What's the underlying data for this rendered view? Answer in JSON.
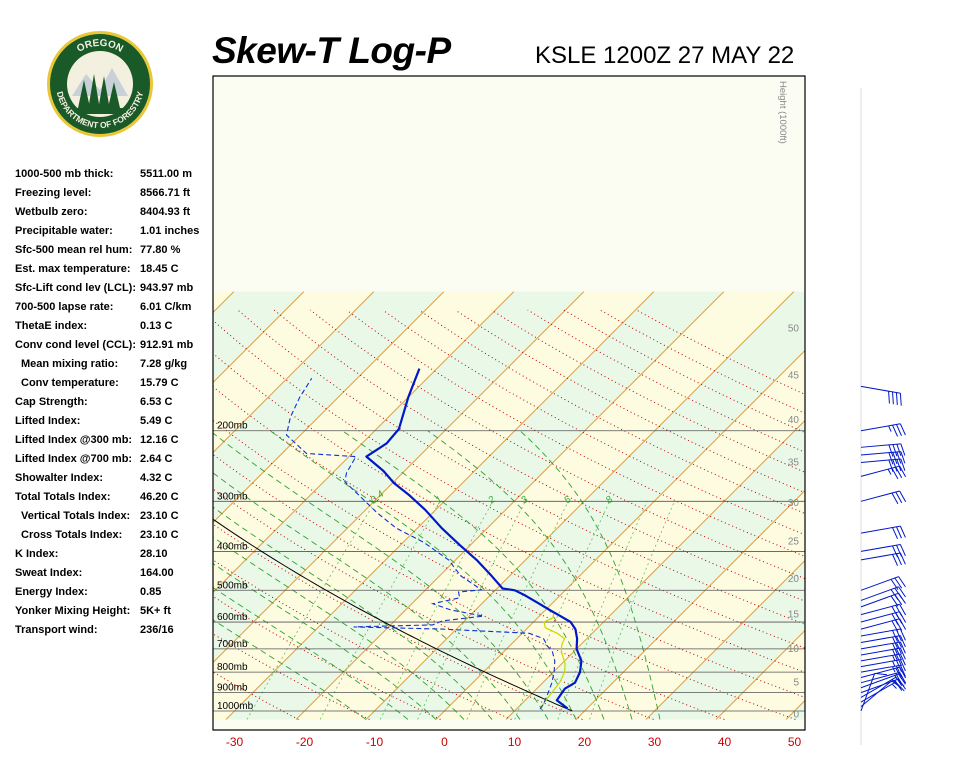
{
  "header": {
    "title": "Skew-T Log-P",
    "station_time": "KSLE 1200Z 27 MAY 22"
  },
  "logo": {
    "top_text": "OREGON",
    "bottom_text": "DEPARTMENT OF FORESTRY"
  },
  "stats": [
    {
      "label": "1000-500 mb thick:",
      "value": "5511.00 m"
    },
    {
      "label": "Freezing level:",
      "value": "8566.71 ft"
    },
    {
      "label": "Wetbulb zero:",
      "value": "8404.93 ft"
    },
    {
      "label": "Precipitable water:",
      "value": "1.01 inches"
    },
    {
      "label": "Sfc-500 mean rel hum:",
      "value": "77.80 %"
    },
    {
      "label": "Est. max temperature:",
      "value": "18.45 C"
    },
    {
      "label": "Sfc-Lift cond lev (LCL):",
      "value": "943.97 mb"
    },
    {
      "label": "700-500 lapse rate:",
      "value": "6.01 C/km"
    },
    {
      "label": "ThetaE index:",
      "value": "0.13 C"
    },
    {
      "label": "Conv cond level (CCL):",
      "value": "912.91 mb"
    },
    {
      "label": "Mean mixing ratio:",
      "value": "7.28 g/kg",
      "indent": true
    },
    {
      "label": "Conv temperature:",
      "value": "15.79 C",
      "indent": true
    },
    {
      "label": "Cap Strength:",
      "value": "6.53 C"
    },
    {
      "label": "Lifted Index:",
      "value": "5.49 C"
    },
    {
      "label": "Lifted Index @300 mb:",
      "value": "12.16 C"
    },
    {
      "label": "Lifted Index @700 mb:",
      "value": "2.64 C"
    },
    {
      "label": "Showalter Index:",
      "value": "4.32 C"
    },
    {
      "label": "Total Totals Index:",
      "value": "46.20 C"
    },
    {
      "label": "Vertical Totals Index:",
      "value": "23.10 C",
      "indent": true
    },
    {
      "label": "Cross Totals Index:",
      "value": "23.10 C",
      "indent": true
    },
    {
      "label": "K Index:",
      "value": "28.10"
    },
    {
      "label": "Sweat Index:",
      "value": "164.00"
    },
    {
      "label": "Energy Index:",
      "value": "0.85"
    },
    {
      "label": "Yonker Mixing Height:",
      "value": "5K+ ft"
    },
    {
      "label": "Transport wind:",
      "value": "236/16"
    }
  ],
  "chart_data": {
    "type": "line",
    "y_scale": "log-pressure",
    "x_ticks": [
      -30,
      -20,
      -10,
      0,
      10,
      20,
      30,
      40,
      50
    ],
    "x_tick_color": "#cc0000",
    "pressure_levels": [
      {
        "p": 200,
        "label": "200mb"
      },
      {
        "p": 300,
        "label": "300mb"
      },
      {
        "p": 400,
        "label": "400mb"
      },
      {
        "p": 500,
        "label": "500mb"
      },
      {
        "p": 600,
        "label": "600mb"
      },
      {
        "p": 700,
        "label": "700mb"
      },
      {
        "p": 800,
        "label": "800mb"
      },
      {
        "p": 900,
        "label": "900mb"
      },
      {
        "p": 1000,
        "label": "1000mb"
      }
    ],
    "height_axis": {
      "label": "Height (1000ft)",
      "ticks": [
        0,
        5,
        10,
        15,
        20,
        25,
        30,
        35,
        40,
        45,
        50
      ]
    },
    "mixing_ratio_labels": [
      "0.4",
      "1",
      "2",
      "3",
      "5",
      "8"
    ],
    "colors": {
      "temperature": "#0018c8",
      "dewpoint": "#1030d8",
      "parcel": "#000000",
      "wetbulb": "#c8d800",
      "isotherm": "#e0a040",
      "dry_adiabat": "#c00000",
      "moist_adiabat": "#30a030",
      "mixing_ratio": "#60c060",
      "wind_barb": "#0018c8"
    },
    "series": [
      {
        "key": "temperature",
        "points": [
          {
            "p": 985,
            "t": 17.2
          },
          {
            "p": 940,
            "t": 14.5
          },
          {
            "p": 880,
            "t": 14.0
          },
          {
            "p": 850,
            "t": 14.6
          },
          {
            "p": 800,
            "t": 13.8
          },
          {
            "p": 750,
            "t": 12.4
          },
          {
            "p": 700,
            "t": 10.0
          },
          {
            "p": 660,
            "t": 8.6
          },
          {
            "p": 625,
            "t": 7.0
          },
          {
            "p": 600,
            "t": 5.3
          },
          {
            "p": 580,
            "t": 3.0
          },
          {
            "p": 560,
            "t": 0.6
          },
          {
            "p": 540,
            "t": -1.8
          },
          {
            "p": 515,
            "t": -5.0
          },
          {
            "p": 500,
            "t": -7.2
          },
          {
            "p": 495,
            "t": -9.2
          },
          {
            "p": 460,
            "t": -12.6
          },
          {
            "p": 420,
            "t": -17.0
          },
          {
            "p": 385,
            "t": -21.6
          },
          {
            "p": 350,
            "t": -26.5
          },
          {
            "p": 315,
            "t": -31.5
          },
          {
            "p": 290,
            "t": -35.8
          },
          {
            "p": 270,
            "t": -39.8
          },
          {
            "p": 252,
            "t": -43.0
          },
          {
            "p": 232,
            "t": -47.5
          },
          {
            "p": 215,
            "t": -46.5
          },
          {
            "p": 198,
            "t": -46.8
          },
          {
            "p": 165,
            "t": -50.0
          },
          {
            "p": 140,
            "t": -52.5
          }
        ]
      },
      {
        "key": "dewpoint",
        "points": [
          {
            "p": 990,
            "t": 13.4
          },
          {
            "p": 950,
            "t": 13.0
          },
          {
            "p": 900,
            "t": 12.2
          },
          {
            "p": 850,
            "t": 11.3
          },
          {
            "p": 800,
            "t": 10.1
          },
          {
            "p": 750,
            "t": 8.6
          },
          {
            "p": 708,
            "t": 6.8
          },
          {
            "p": 690,
            "t": 5.5
          },
          {
            "p": 672,
            "t": 4.5
          },
          {
            "p": 660,
            "t": 3.8
          },
          {
            "p": 640,
            "t": 1.0
          },
          {
            "p": 625,
            "t": -12.0
          },
          {
            "p": 617,
            "t": -25.0
          },
          {
            "p": 610,
            "t": -14.0
          },
          {
            "p": 596,
            "t": -13.2
          },
          {
            "p": 580,
            "t": -8.0
          },
          {
            "p": 560,
            "t": -13.5
          },
          {
            "p": 540,
            "t": -17.0
          },
          {
            "p": 522,
            "t": -14.0
          },
          {
            "p": 505,
            "t": -15.0
          },
          {
            "p": 499,
            "t": -12.0
          },
          {
            "p": 460,
            "t": -17.0
          },
          {
            "p": 420,
            "t": -21.0
          },
          {
            "p": 380,
            "t": -27.0
          },
          {
            "p": 350,
            "t": -33.0
          },
          {
            "p": 320,
            "t": -38.0
          },
          {
            "p": 290,
            "t": -43.0
          },
          {
            "p": 268,
            "t": -47.0
          },
          {
            "p": 255,
            "t": -48.0
          },
          {
            "p": 232,
            "t": -49.0
          },
          {
            "p": 228,
            "t": -56.5
          },
          {
            "p": 205,
            "t": -62.0
          },
          {
            "p": 185,
            "t": -64.0
          },
          {
            "p": 165,
            "t": -65.5
          },
          {
            "p": 148,
            "t": -66.5
          }
        ]
      }
    ],
    "wind_barbs": [
      {
        "p": 1000,
        "dir": 200,
        "spd": 10
      },
      {
        "p": 975,
        "dir": 230,
        "spd": 10
      },
      {
        "p": 950,
        "dir": 240,
        "spd": 15
      },
      {
        "p": 925,
        "dir": 240,
        "spd": 15
      },
      {
        "p": 900,
        "dir": 250,
        "spd": 20
      },
      {
        "p": 875,
        "dir": 250,
        "spd": 20
      },
      {
        "p": 850,
        "dir": 255,
        "spd": 20
      },
      {
        "p": 825,
        "dir": 255,
        "spd": 20
      },
      {
        "p": 800,
        "dir": 260,
        "spd": 25
      },
      {
        "p": 775,
        "dir": 260,
        "spd": 25
      },
      {
        "p": 750,
        "dir": 260,
        "spd": 25
      },
      {
        "p": 725,
        "dir": 260,
        "spd": 30
      },
      {
        "p": 700,
        "dir": 260,
        "spd": 30
      },
      {
        "p": 675,
        "dir": 260,
        "spd": 30
      },
      {
        "p": 650,
        "dir": 260,
        "spd": 30
      },
      {
        "p": 625,
        "dir": 255,
        "spd": 30
      },
      {
        "p": 600,
        "dir": 255,
        "spd": 30
      },
      {
        "p": 575,
        "dir": 255,
        "spd": 30
      },
      {
        "p": 550,
        "dir": 250,
        "spd": 30
      },
      {
        "p": 530,
        "dir": 250,
        "spd": 30
      },
      {
        "p": 500,
        "dir": 250,
        "spd": 30
      },
      {
        "p": 420,
        "dir": 260,
        "spd": 30
      },
      {
        "p": 400,
        "dir": 260,
        "spd": 30
      },
      {
        "p": 360,
        "dir": 260,
        "spd": 30
      },
      {
        "p": 300,
        "dir": 255,
        "spd": 30
      },
      {
        "p": 260,
        "dir": 255,
        "spd": 35
      },
      {
        "p": 240,
        "dir": 265,
        "spd": 40
      },
      {
        "p": 230,
        "dir": 265,
        "spd": 40
      },
      {
        "p": 220,
        "dir": 265,
        "spd": 40
      },
      {
        "p": 200,
        "dir": 260,
        "spd": 35
      },
      {
        "p": 155,
        "dir": 280,
        "spd": 40
      }
    ]
  }
}
